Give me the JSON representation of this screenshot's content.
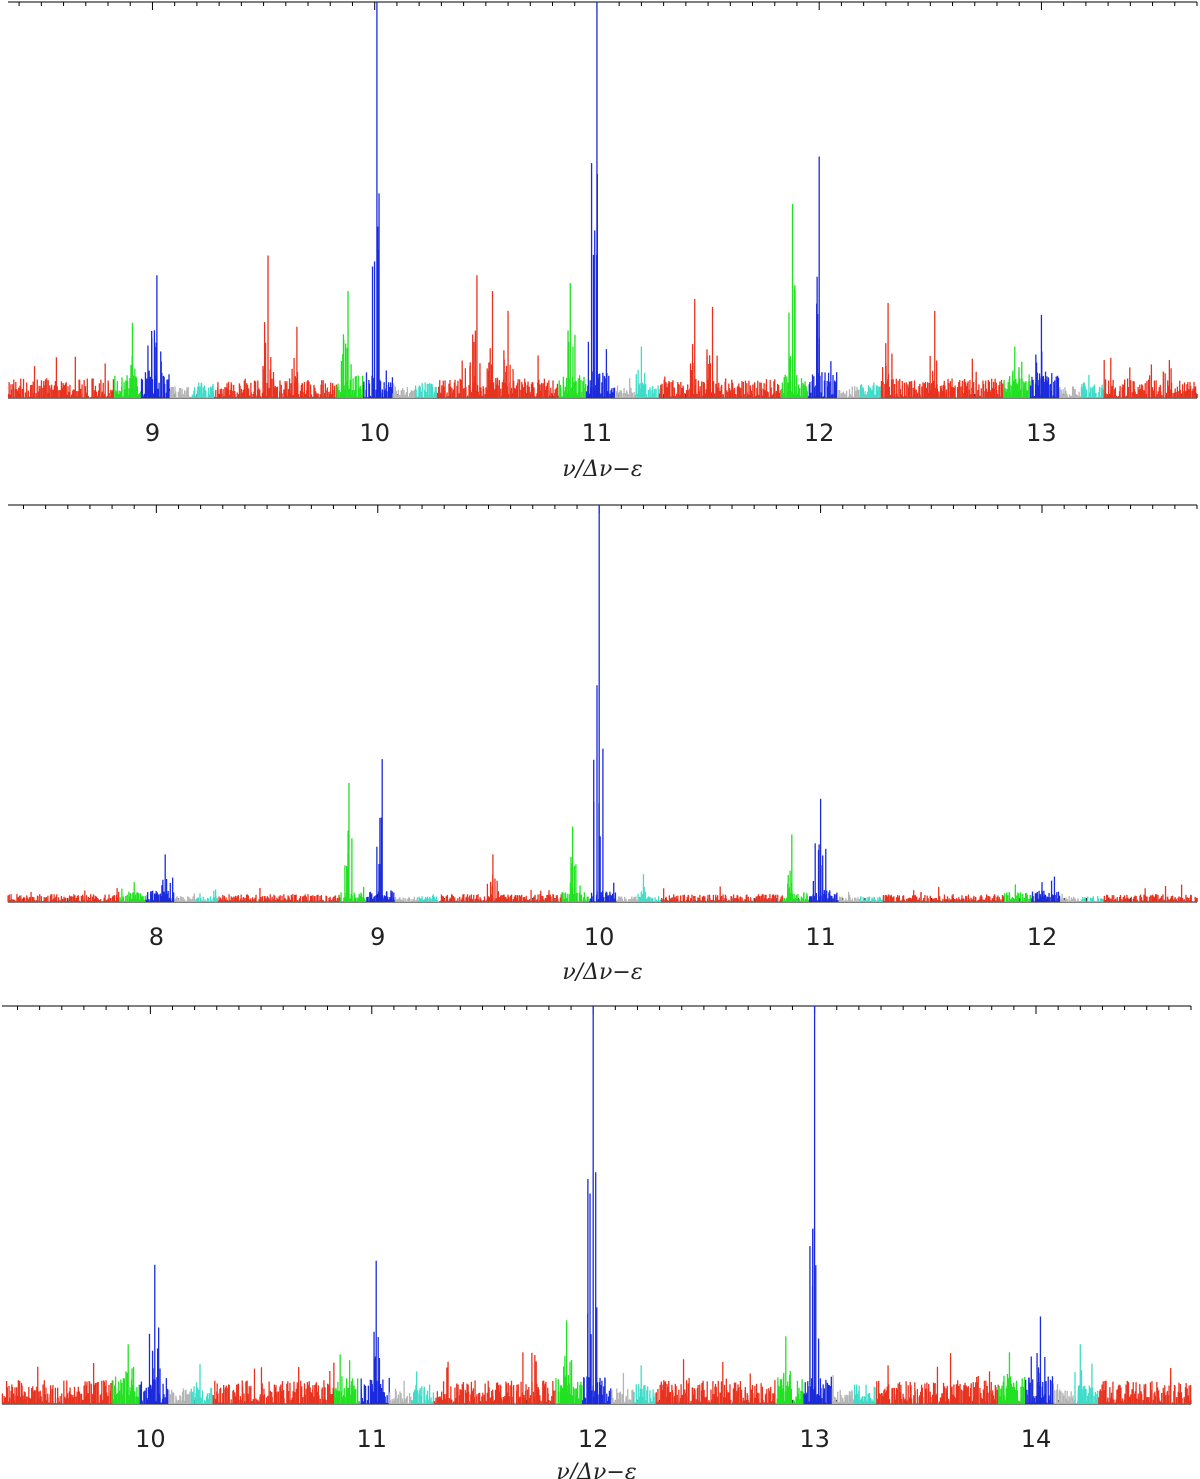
{
  "colors": {
    "red": "#e8321e",
    "green": "#22e022",
    "blue": "#1a2bdc",
    "gray": "#b4b4b4",
    "cyan": "#3fdcc8"
  },
  "chart_data": [
    {
      "type": "line",
      "xlabel": "ν/Δν−ε",
      "ylabel": "",
      "xlim": [
        8.35,
        13.7
      ],
      "ylim": [
        0,
        1
      ],
      "grid": false,
      "x_ticks": [
        9,
        10,
        11,
        12,
        13
      ],
      "x_tick_labels": [
        "9",
        "10",
        "11",
        "12",
        "13"
      ],
      "peaks": [
        {
          "x": 8.91,
          "y": 0.19,
          "color": "green"
        },
        {
          "x": 9.02,
          "y": 0.31,
          "color": "blue"
        },
        {
          "x": 9.52,
          "y": 0.36,
          "color": "red"
        },
        {
          "x": 9.65,
          "y": 0.18,
          "color": "red"
        },
        {
          "x": 9.88,
          "y": 0.27,
          "color": "green"
        },
        {
          "x": 10.01,
          "y": 1.0,
          "color": "blue"
        },
        {
          "x": 10.46,
          "y": 0.31,
          "color": "red"
        },
        {
          "x": 10.53,
          "y": 0.27,
          "color": "red"
        },
        {
          "x": 10.6,
          "y": 0.22,
          "color": "red"
        },
        {
          "x": 10.88,
          "y": 0.29,
          "color": "green"
        },
        {
          "x": 11.0,
          "y": 1.0,
          "color": "blue"
        },
        {
          "x": 11.2,
          "y": 0.13,
          "color": "cyan"
        },
        {
          "x": 11.44,
          "y": 0.25,
          "color": "red"
        },
        {
          "x": 11.52,
          "y": 0.23,
          "color": "red"
        },
        {
          "x": 11.88,
          "y": 0.49,
          "color": "green"
        },
        {
          "x": 12.0,
          "y": 0.61,
          "color": "blue"
        },
        {
          "x": 12.31,
          "y": 0.24,
          "color": "red"
        },
        {
          "x": 12.52,
          "y": 0.22,
          "color": "red"
        },
        {
          "x": 12.88,
          "y": 0.13,
          "color": "green"
        },
        {
          "x": 13.0,
          "y": 0.21,
          "color": "blue"
        }
      ],
      "noise_level": {
        "red": 0.05,
        "green": 0.06,
        "blue": 0.07,
        "gray": 0.03,
        "cyan": 0.04
      }
    },
    {
      "type": "line",
      "xlabel": "ν/Δν−ε",
      "ylabel": "",
      "xlim": [
        7.33,
        12.7
      ],
      "ylim": [
        0,
        1
      ],
      "grid": false,
      "x_ticks": [
        8,
        9,
        10,
        11,
        12
      ],
      "x_tick_labels": [
        "8",
        "9",
        "10",
        "11",
        "12"
      ],
      "peaks": [
        {
          "x": 7.9,
          "y": 0.05,
          "color": "green"
        },
        {
          "x": 8.04,
          "y": 0.12,
          "color": "blue"
        },
        {
          "x": 8.87,
          "y": 0.3,
          "color": "green"
        },
        {
          "x": 9.02,
          "y": 0.36,
          "color": "blue"
        },
        {
          "x": 9.52,
          "y": 0.12,
          "color": "red"
        },
        {
          "x": 9.88,
          "y": 0.19,
          "color": "green"
        },
        {
          "x": 10.0,
          "y": 1.0,
          "color": "blue"
        },
        {
          "x": 10.2,
          "y": 0.07,
          "color": "cyan"
        },
        {
          "x": 10.87,
          "y": 0.17,
          "color": "green"
        },
        {
          "x": 11.0,
          "y": 0.26,
          "color": "blue"
        },
        {
          "x": 11.88,
          "y": 0.03,
          "color": "green"
        },
        {
          "x": 12.0,
          "y": 0.05,
          "color": "blue"
        }
      ],
      "noise_level": {
        "red": 0.02,
        "green": 0.025,
        "blue": 0.03,
        "gray": 0.015,
        "cyan": 0.015
      }
    },
    {
      "type": "line",
      "xlabel": "ν/Δν−ε",
      "ylabel": "",
      "xlim": [
        9.33,
        14.7
      ],
      "ylim": [
        0,
        1
      ],
      "grid": false,
      "x_ticks": [
        10,
        11,
        12,
        13,
        14
      ],
      "x_tick_labels": [
        "10",
        "11",
        "12",
        "13",
        "14"
      ],
      "peaks": [
        {
          "x": 9.9,
          "y": 0.15,
          "color": "green"
        },
        {
          "x": 10.02,
          "y": 0.35,
          "color": "blue"
        },
        {
          "x": 10.9,
          "y": 0.11,
          "color": "green"
        },
        {
          "x": 11.02,
          "y": 0.36,
          "color": "blue"
        },
        {
          "x": 11.88,
          "y": 0.21,
          "color": "green"
        },
        {
          "x": 12.0,
          "y": 1.0,
          "color": "blue"
        },
        {
          "x": 12.87,
          "y": 0.17,
          "color": "green"
        },
        {
          "x": 13.0,
          "y": 1.0,
          "color": "blue"
        },
        {
          "x": 13.88,
          "y": 0.13,
          "color": "green"
        },
        {
          "x": 14.02,
          "y": 0.22,
          "color": "blue"
        },
        {
          "x": 14.2,
          "y": 0.15,
          "color": "cyan"
        }
      ],
      "noise_level": {
        "red": 0.06,
        "green": 0.07,
        "blue": 0.07,
        "gray": 0.04,
        "cyan": 0.05
      }
    }
  ]
}
